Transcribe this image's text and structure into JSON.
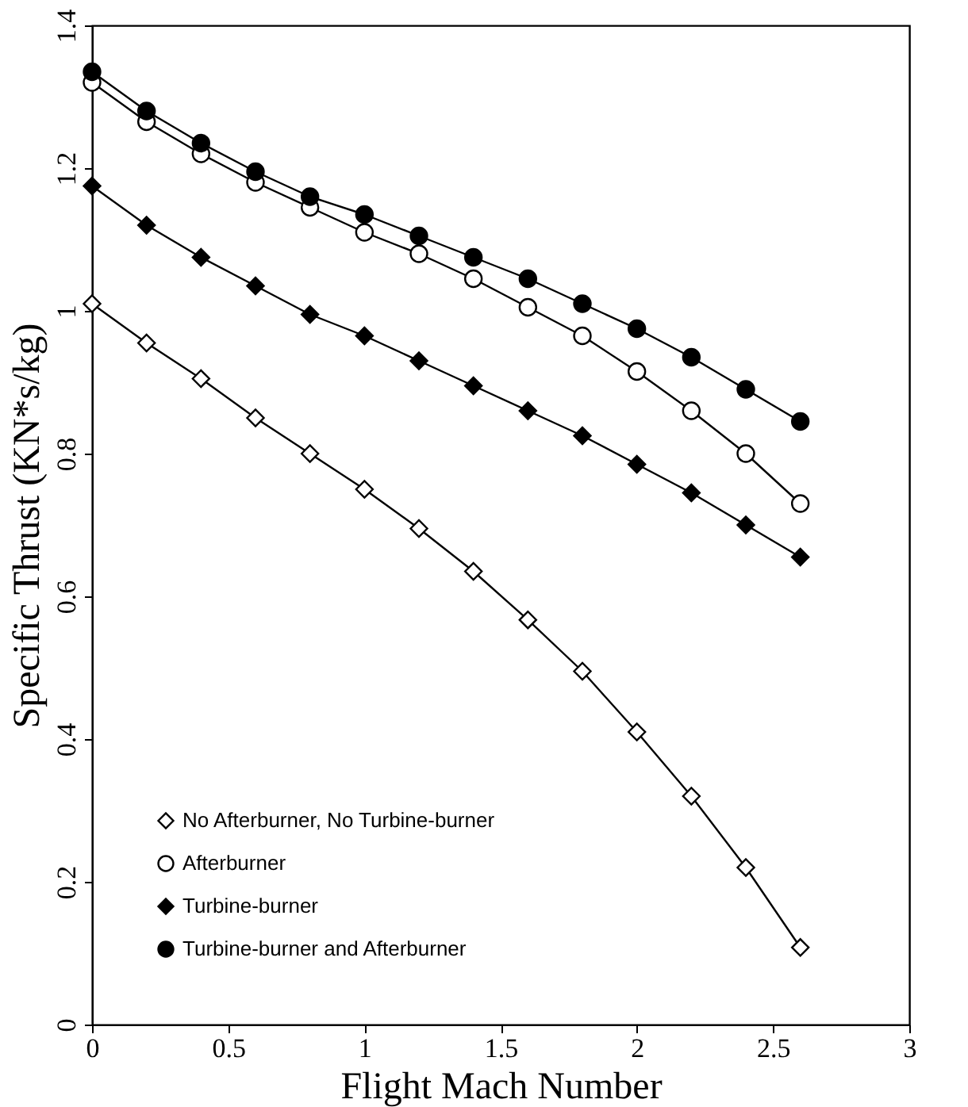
{
  "chart_data": {
    "type": "line",
    "xlabel": "Flight Mach Number",
    "ylabel": "Specific Thrust (KN*s/kg)",
    "x": [
      0,
      0.2,
      0.4,
      0.6,
      0.8,
      1.0,
      1.2,
      1.4,
      1.6,
      1.8,
      2.0,
      2.2,
      2.4,
      2.6
    ],
    "series": [
      {
        "name": "No Afterburner, No Turbine-burner",
        "color": "#ffffff",
        "marker": "diamond",
        "values": [
          1.01,
          0.955,
          0.905,
          0.85,
          0.8,
          0.75,
          0.695,
          0.635,
          0.567,
          0.495,
          0.41,
          0.32,
          0.22,
          0.108
        ]
      },
      {
        "name": "Afterburner",
        "color": "#ffffff",
        "marker": "circle",
        "values": [
          1.32,
          1.265,
          1.22,
          1.18,
          1.145,
          1.11,
          1.08,
          1.045,
          1.005,
          0.965,
          0.915,
          0.86,
          0.8,
          0.73
        ]
      },
      {
        "name": "Turbine-burner",
        "color": "#000000",
        "marker": "diamond",
        "values": [
          1.175,
          1.12,
          1.075,
          1.035,
          0.995,
          0.965,
          0.93,
          0.895,
          0.86,
          0.825,
          0.785,
          0.745,
          0.7,
          0.655
        ]
      },
      {
        "name": "Turbine-burner and Afterburner",
        "color": "#000000",
        "marker": "circle",
        "values": [
          1.335,
          1.28,
          1.235,
          1.195,
          1.16,
          1.135,
          1.105,
          1.075,
          1.045,
          1.01,
          0.975,
          0.935,
          0.89,
          0.845
        ]
      }
    ],
    "xlim": [
      0,
      3
    ],
    "xticks": [
      0,
      0.5,
      1,
      1.5,
      2,
      2.5,
      3
    ],
    "ylim": [
      0,
      1.4
    ],
    "yticks": [
      0,
      0.2,
      0.4,
      0.6,
      0.8,
      1,
      1.2,
      1.4
    ],
    "grid": false,
    "legend": "bottom left",
    "line_style": "solid"
  }
}
